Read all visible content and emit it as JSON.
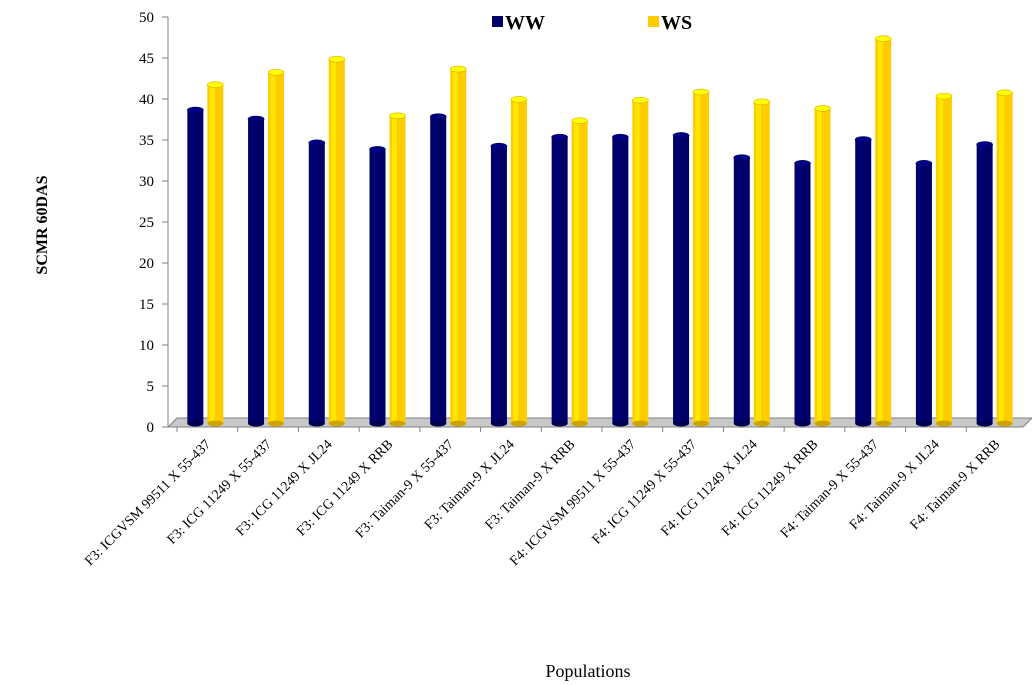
{
  "chart_data": {
    "type": "bar",
    "title": "",
    "xlabel": "Populations",
    "ylabel": "SCMR 60DAS",
    "ylim": [
      0,
      50
    ],
    "yticks": [
      0,
      5,
      10,
      15,
      20,
      25,
      30,
      35,
      40,
      45,
      50
    ],
    "grid": false,
    "legend_position": "top",
    "categories": [
      "F3: ICGVSM 99511 X 55-437",
      "F3: ICG 11249 X 55-437",
      "F3: ICG 11249 X JL24",
      "F3: ICG 11249 X RRB",
      "F3: Taiman-9 X 55-437",
      "F3: Taiman-9 X JL24",
      "F3: Taiman-9 X RRB",
      "F4: ICGVSM 99511 X 55-437",
      "F4:  ICG 11249 X 55-437",
      "F4:  ICG 11249 X JL24",
      "F4:   ICG 11249 X RRB",
      "F4:  Taiman-9 X 55-437",
      "F4: Taiman-9 X JL24",
      "F4:  Taiman-9 X RRB"
    ],
    "series": [
      {
        "name": "WW",
        "color": "#000066",
        "values": [
          39.2,
          38.1,
          35.2,
          34.4,
          38.4,
          34.8,
          35.9,
          35.9,
          36.1,
          33.4,
          32.7,
          35.6,
          32.7,
          35.0
        ]
      },
      {
        "name": "WS",
        "color": "#FFCC00",
        "values": [
          42.3,
          43.8,
          45.4,
          38.5,
          44.2,
          40.5,
          37.9,
          40.4,
          41.4,
          40.2,
          39.4,
          47.9,
          40.9,
          41.3
        ]
      }
    ]
  }
}
